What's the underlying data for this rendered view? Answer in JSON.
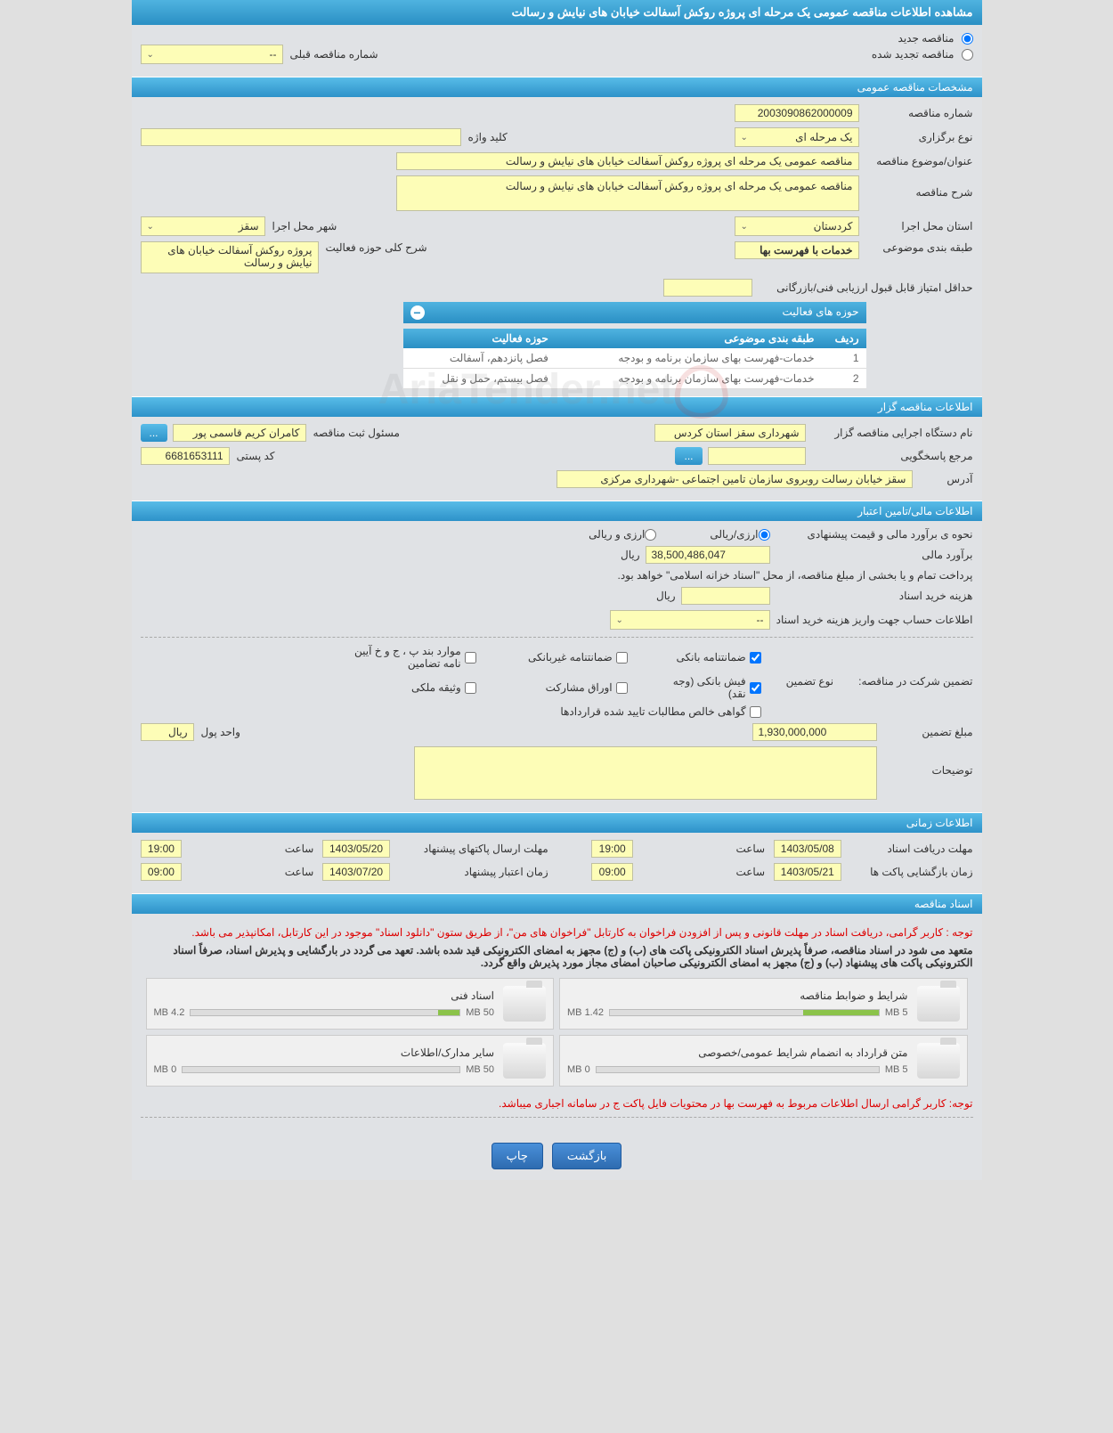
{
  "header": {
    "title": "مشاهده اطلاعات مناقصه عمومی یک مرحله ای پروژه روکش آسفالت خیابان های نیایش و رسالت"
  },
  "tender_type": {
    "new_label": "مناقصه جدید",
    "renewed_label": "مناقصه تجدید شده",
    "prev_number_label": "شماره مناقصه قبلی",
    "prev_number_value": "--"
  },
  "sections": {
    "general": "مشخصات مناقصه عمومی",
    "holder": "اطلاعات مناقصه گزار",
    "financial": "اطلاعات مالی/تامین اعتبار",
    "timing": "اطلاعات زمانی",
    "documents": "اسناد مناقصه"
  },
  "general": {
    "number_label": "شماره مناقصه",
    "number": "2003090862000009",
    "type_label": "نوع برگزاری",
    "type_value": "یک مرحله ای",
    "keyword_label": "کلید واژه",
    "keyword": "",
    "title_label": "عنوان/موضوع مناقصه",
    "title": "مناقصه عمومی یک مرحله ای پروژه روکش آسفالت خیابان های نیایش و رسالت",
    "desc_label": "شرح مناقصه",
    "desc": "مناقصه عمومی یک مرحله ای پروژه روکش آسفالت خیابان های نیایش و رسالت",
    "province_label": "استان محل اجرا",
    "province": "کردستان",
    "city_label": "شهر محل اجرا",
    "city": "سقز",
    "category_label": "طبقه بندی موضوعی",
    "category": "خدمات با فهرست بها",
    "activity_desc_label": "شرح کلی حوزه فعالیت",
    "activity_desc": "پروژه روکش آسفالت خیابان های نیایش و رسالت",
    "min_score_label": "حداقل امتیاز قابل قبول ارزیابی فنی/بازرگانی",
    "min_score": "",
    "activity_header": "حوزه های فعالیت",
    "table": {
      "col_row": "ردیف",
      "col_category": "طبقه بندی موضوعی",
      "col_activity": "حوزه فعالیت",
      "rows": [
        {
          "n": "1",
          "cat": "خدمات-فهرست بهای سازمان برنامه و بودجه",
          "act": "فصل پانزدهم، آسفالت"
        },
        {
          "n": "2",
          "cat": "خدمات-فهرست بهای سازمان برنامه و بودجه",
          "act": "فصل بیستم، حمل و نقل"
        }
      ]
    }
  },
  "holder": {
    "org_label": "نام دستگاه اجرایی مناقصه گزار",
    "org": "شهرداری سقز استان کردس",
    "responsible_label": "مسئول ثبت مناقصه",
    "responsible": "کامران کریم قاسمی پور",
    "more_btn": "...",
    "contact_label": "مرجع پاسخگویی",
    "contact": "",
    "dots_btn": "...",
    "postal_label": "کد پستی",
    "postal": "6681653111",
    "address_label": "آدرس",
    "address": "سقز خیابان رسالت روبروی سازمان تامین اجتماعی -شهرداری مرکزی"
  },
  "financial": {
    "estimate_mode_label": "نحوه ی برآورد مالی و قیمت پیشنهادی",
    "mode_rial": "ارزی/ریالی",
    "mode_both": "ارزی و ریالی",
    "estimate_label": "برآورد مالی",
    "estimate": "38,500,486,047",
    "rial": "ریال",
    "payment_note": "پرداخت تمام و یا بخشی از مبلغ مناقصه، از محل \"اسناد خزانه اسلامی\" خواهد بود.",
    "doc_cost_label": "هزینه خرید اسناد",
    "doc_cost": "",
    "account_label": "اطلاعات حساب جهت واریز هزینه خرید اسناد",
    "account": "--",
    "guarantee_label": "تضمین شرکت در مناقصه:",
    "guarantee_type_label": "نوع تضمین",
    "cb_bank": "ضمانتنامه بانکی",
    "cb_nonbank": "ضمانتنامه غیربانکی",
    "cb_regs": "موارد بند پ ، ج و خ آیین نامه تضامین",
    "cb_cash": "فیش بانکی (وجه نقد)",
    "cb_bonds": "اوراق مشارکت",
    "cb_property": "وثیقه ملکی",
    "cb_cert": "گواهی خالص مطالبات تایید شده قراردادها",
    "guarantee_amount_label": "مبلغ تضمین",
    "guarantee_amount": "1,930,000,000",
    "currency_label": "واحد پول",
    "currency": "ریال",
    "notes_label": "توضیحات",
    "notes": ""
  },
  "timing": {
    "receive_deadline_label": "مهلت دریافت اسناد",
    "receive_date": "1403/05/08",
    "receive_time": "19:00",
    "submit_deadline_label": "مهلت ارسال پاکتهای پیشنهاد",
    "submit_date": "1403/05/20",
    "submit_time": "19:00",
    "open_label": "زمان بازگشایی پاکت ها",
    "open_date": "1403/05/21",
    "open_time": "09:00",
    "validity_label": "زمان اعتبار پیشنهاد",
    "validity_date": "1403/07/20",
    "validity_time": "09:00",
    "time_label": "ساعت"
  },
  "documents": {
    "note1": "توجه : کاربر گرامی، دریافت اسناد در مهلت قانونی و پس از افزودن فراخوان به کارتابل \"فراخوان های من\"، از طریق ستون \"دانلود اسناد\" موجود در این کارتابل، امکانپذیر می باشد.",
    "note2": "متعهد می شود در اسناد مناقصه، صرفاً پذیرش اسناد الکترونیکی پاکت های (ب) و (ج) مجهز به امضای الکترونیکی قید شده باشد. تعهد می گردد در بارگشایی و پذیرش اسناد، صرفاً اسناد الکترونیکی پاکت های پیشنهاد (ب) و (ج) مجهز به امضای الکترونیکی صاحبان امضای مجاز مورد پذیرش واقع گردد.",
    "cards": [
      {
        "title": "شرایط و ضوابط مناقصه",
        "used": "1.42 MB",
        "total": "5 MB",
        "pct": 28
      },
      {
        "title": "اسناد فنی",
        "used": "4.2 MB",
        "total": "50 MB",
        "pct": 8
      },
      {
        "title": "متن قرارداد به انضمام شرایط عمومی/خصوصی",
        "used": "0 MB",
        "total": "5 MB",
        "pct": 0
      },
      {
        "title": "سایر مدارک/اطلاعات",
        "used": "0 MB",
        "total": "50 MB",
        "pct": 0
      }
    ],
    "note3": "توجه: کاربر گرامی ارسال اطلاعات مربوط به فهرست بها در محتویات فایل پاکت ج در سامانه اجباری میباشد."
  },
  "buttons": {
    "back": "بازگشت",
    "print": "چاپ"
  },
  "watermark": "AriaTender.net"
}
